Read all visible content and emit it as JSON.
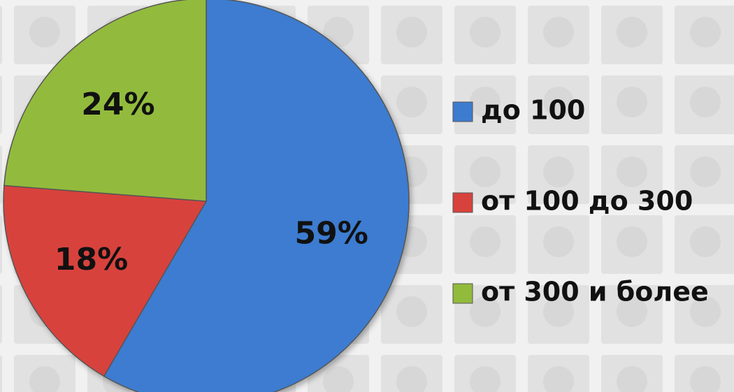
{
  "chart_data": {
    "type": "pie",
    "categories": [
      "до 100",
      "от 100 до 300",
      "от 300 и более"
    ],
    "values": [
      59,
      18,
      24
    ],
    "value_labels": [
      "59%",
      "18%",
      "24%"
    ],
    "colors": [
      "#3d7bd0",
      "#d8423c",
      "#92bb3c"
    ],
    "legend": "right"
  }
}
